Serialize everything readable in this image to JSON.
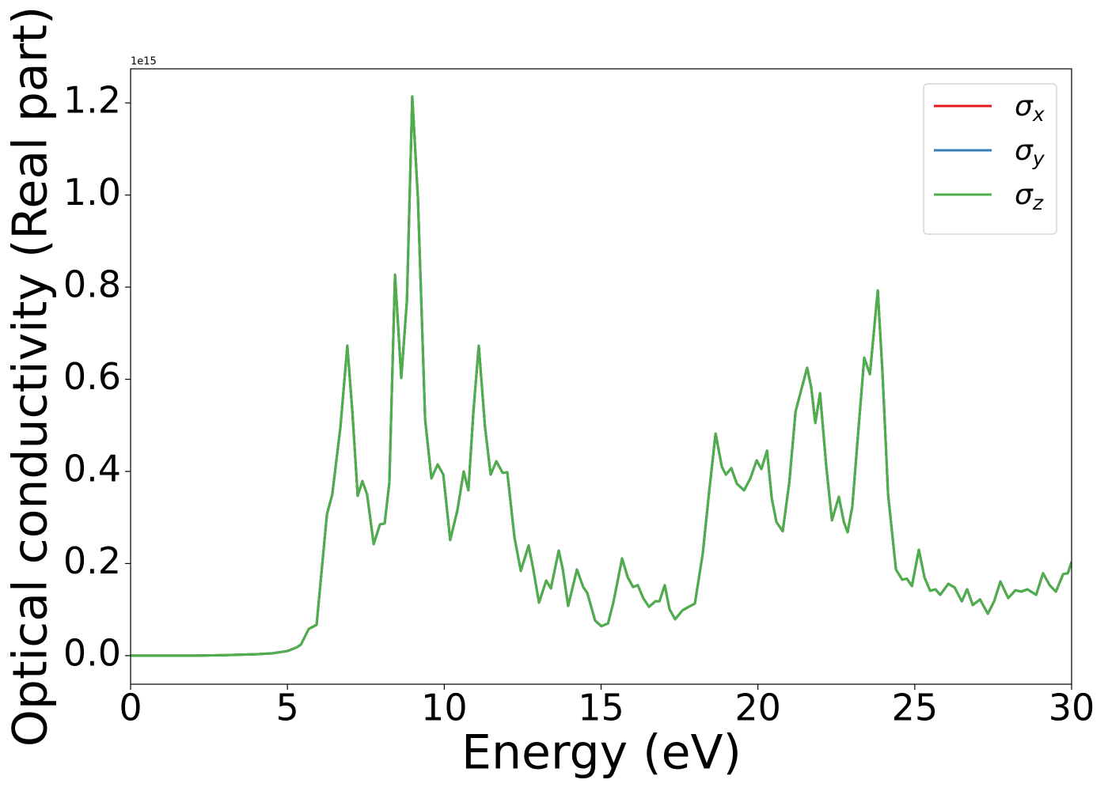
{
  "chart_data": {
    "type": "line",
    "x_label": "Energy (eV)",
    "y_label": "Optical conductivity (Real part)",
    "y_offset_text": "1e15",
    "x": [
      0,
      1,
      2,
      3,
      4,
      4.5,
      5,
      5.3,
      5.43,
      5.68,
      5.93,
      6.26,
      6.43,
      6.69,
      6.91,
      7.07,
      7.24,
      7.39,
      7.54,
      7.75,
      7.95,
      8.1,
      8.25,
      8.43,
      8.63,
      8.81,
      8.98,
      9.16,
      9.39,
      9.59,
      9.79,
      9.97,
      10.19,
      10.42,
      10.62,
      10.77,
      10.93,
      11.1,
      11.3,
      11.48,
      11.66,
      11.86,
      12.01,
      12.24,
      12.44,
      12.69,
      12.84,
      13.02,
      13.25,
      13.4,
      13.65,
      13.78,
      13.95,
      14.23,
      14.43,
      14.56,
      14.81,
      15.01,
      15.22,
      15.39,
      15.67,
      15.85,
      16.02,
      16.17,
      16.35,
      16.53,
      16.73,
      16.86,
      17.03,
      17.18,
      17.36,
      17.59,
      17.79,
      17.99,
      18.24,
      18.45,
      18.65,
      18.85,
      18.98,
      19.15,
      19.33,
      19.56,
      19.76,
      19.96,
      20.11,
      20.29,
      20.44,
      20.59,
      20.79,
      21.0,
      21.2,
      21.4,
      21.57,
      21.7,
      21.83,
      21.98,
      22.18,
      22.36,
      22.58,
      22.74,
      22.86,
      23.01,
      23.21,
      23.39,
      23.57,
      23.82,
      23.97,
      24.15,
      24.4,
      24.6,
      24.75,
      24.91,
      25.13,
      25.31,
      25.49,
      25.66,
      25.81,
      26.07,
      26.27,
      26.5,
      26.67,
      26.85,
      27.08,
      27.33,
      27.53,
      27.73,
      27.98,
      28.21,
      28.39,
      28.59,
      28.87,
      29.09,
      29.3,
      29.5,
      29.73,
      29.88,
      30
    ],
    "series": [
      {
        "name": "σx",
        "color": "#e41a1c",
        "values": [
          0,
          0,
          0,
          0.001,
          0.003,
          0.005,
          0.01,
          0.018,
          0.024,
          0.058,
          0.067,
          0.307,
          0.35,
          0.496,
          0.673,
          0.53,
          0.347,
          0.379,
          0.35,
          0.242,
          0.285,
          0.287,
          0.376,
          0.827,
          0.603,
          0.771,
          1.214,
          0.994,
          0.513,
          0.385,
          0.415,
          0.393,
          0.251,
          0.316,
          0.4,
          0.359,
          0.53,
          0.673,
          0.496,
          0.393,
          0.422,
          0.397,
          0.398,
          0.256,
          0.184,
          0.239,
          0.187,
          0.115,
          0.163,
          0.146,
          0.228,
          0.187,
          0.108,
          0.187,
          0.149,
          0.136,
          0.076,
          0.064,
          0.07,
          0.115,
          0.211,
          0.17,
          0.149,
          0.153,
          0.124,
          0.106,
          0.118,
          0.118,
          0.153,
          0.101,
          0.079,
          0.098,
          0.106,
          0.113,
          0.221,
          0.359,
          0.482,
          0.41,
          0.393,
          0.407,
          0.373,
          0.359,
          0.385,
          0.424,
          0.405,
          0.445,
          0.342,
          0.29,
          0.27,
          0.376,
          0.53,
          0.582,
          0.625,
          0.582,
          0.505,
          0.57,
          0.41,
          0.294,
          0.345,
          0.29,
          0.268,
          0.324,
          0.496,
          0.647,
          0.611,
          0.793,
          0.616,
          0.35,
          0.187,
          0.165,
          0.167,
          0.151,
          0.23,
          0.17,
          0.141,
          0.144,
          0.132,
          0.156,
          0.148,
          0.118,
          0.144,
          0.11,
          0.122,
          0.091,
          0.118,
          0.161,
          0.125,
          0.142,
          0.139,
          0.144,
          0.132,
          0.179,
          0.153,
          0.139,
          0.177,
          0.179,
          0.204
        ]
      },
      {
        "name": "σy",
        "color": "#377eb8",
        "values": [
          0,
          0,
          0,
          0.001,
          0.003,
          0.005,
          0.01,
          0.018,
          0.024,
          0.058,
          0.067,
          0.307,
          0.35,
          0.496,
          0.673,
          0.53,
          0.347,
          0.379,
          0.35,
          0.242,
          0.285,
          0.287,
          0.376,
          0.827,
          0.603,
          0.771,
          1.214,
          0.994,
          0.513,
          0.385,
          0.415,
          0.393,
          0.251,
          0.316,
          0.4,
          0.359,
          0.53,
          0.673,
          0.496,
          0.393,
          0.422,
          0.397,
          0.398,
          0.256,
          0.184,
          0.239,
          0.187,
          0.115,
          0.163,
          0.146,
          0.228,
          0.187,
          0.108,
          0.187,
          0.149,
          0.136,
          0.076,
          0.064,
          0.07,
          0.115,
          0.211,
          0.17,
          0.149,
          0.153,
          0.124,
          0.106,
          0.118,
          0.118,
          0.153,
          0.101,
          0.079,
          0.098,
          0.106,
          0.113,
          0.221,
          0.359,
          0.482,
          0.41,
          0.393,
          0.407,
          0.373,
          0.359,
          0.385,
          0.424,
          0.405,
          0.445,
          0.342,
          0.29,
          0.27,
          0.376,
          0.53,
          0.582,
          0.625,
          0.582,
          0.505,
          0.57,
          0.41,
          0.294,
          0.345,
          0.29,
          0.268,
          0.324,
          0.496,
          0.647,
          0.611,
          0.793,
          0.616,
          0.35,
          0.187,
          0.165,
          0.167,
          0.151,
          0.23,
          0.17,
          0.141,
          0.144,
          0.132,
          0.156,
          0.148,
          0.118,
          0.144,
          0.11,
          0.122,
          0.091,
          0.118,
          0.161,
          0.125,
          0.142,
          0.139,
          0.144,
          0.132,
          0.179,
          0.153,
          0.139,
          0.177,
          0.179,
          0.204
        ]
      },
      {
        "name": "σz",
        "color": "#4daf4a",
        "values": [
          0,
          0,
          0,
          0.001,
          0.003,
          0.005,
          0.01,
          0.018,
          0.024,
          0.058,
          0.067,
          0.307,
          0.35,
          0.496,
          0.673,
          0.53,
          0.347,
          0.379,
          0.35,
          0.242,
          0.285,
          0.287,
          0.376,
          0.827,
          0.603,
          0.771,
          1.214,
          0.994,
          0.513,
          0.385,
          0.415,
          0.393,
          0.251,
          0.316,
          0.4,
          0.359,
          0.53,
          0.673,
          0.496,
          0.393,
          0.422,
          0.397,
          0.398,
          0.256,
          0.184,
          0.239,
          0.187,
          0.115,
          0.163,
          0.146,
          0.228,
          0.187,
          0.108,
          0.187,
          0.149,
          0.136,
          0.076,
          0.064,
          0.07,
          0.115,
          0.211,
          0.17,
          0.149,
          0.153,
          0.124,
          0.106,
          0.118,
          0.118,
          0.153,
          0.101,
          0.079,
          0.098,
          0.106,
          0.113,
          0.221,
          0.359,
          0.482,
          0.41,
          0.393,
          0.407,
          0.373,
          0.359,
          0.385,
          0.424,
          0.405,
          0.445,
          0.342,
          0.29,
          0.27,
          0.376,
          0.53,
          0.582,
          0.625,
          0.582,
          0.505,
          0.57,
          0.41,
          0.294,
          0.345,
          0.29,
          0.268,
          0.324,
          0.496,
          0.647,
          0.611,
          0.793,
          0.616,
          0.35,
          0.187,
          0.165,
          0.167,
          0.151,
          0.23,
          0.17,
          0.141,
          0.144,
          0.132,
          0.156,
          0.148,
          0.118,
          0.144,
          0.11,
          0.122,
          0.091,
          0.118,
          0.161,
          0.125,
          0.142,
          0.139,
          0.144,
          0.132,
          0.179,
          0.153,
          0.139,
          0.177,
          0.179,
          0.204
        ]
      }
    ],
    "xlim": [
      0,
      30
    ],
    "xticks": [
      0,
      5,
      10,
      15,
      20,
      25,
      30
    ],
    "ylim": [
      -0.062,
      1.274
    ],
    "yticks": [
      {
        "value": 0,
        "label": "0.0"
      },
      {
        "value": 0.2,
        "label": "0.2"
      },
      {
        "value": 0.4,
        "label": "0.4"
      },
      {
        "value": 0.6,
        "label": "0.6"
      },
      {
        "value": 0.8,
        "label": "0.8"
      },
      {
        "value": 1.0,
        "label": "1.0"
      },
      {
        "value": 1.2,
        "label": "1.2"
      }
    ],
    "grid": false,
    "legend": "upper right"
  }
}
